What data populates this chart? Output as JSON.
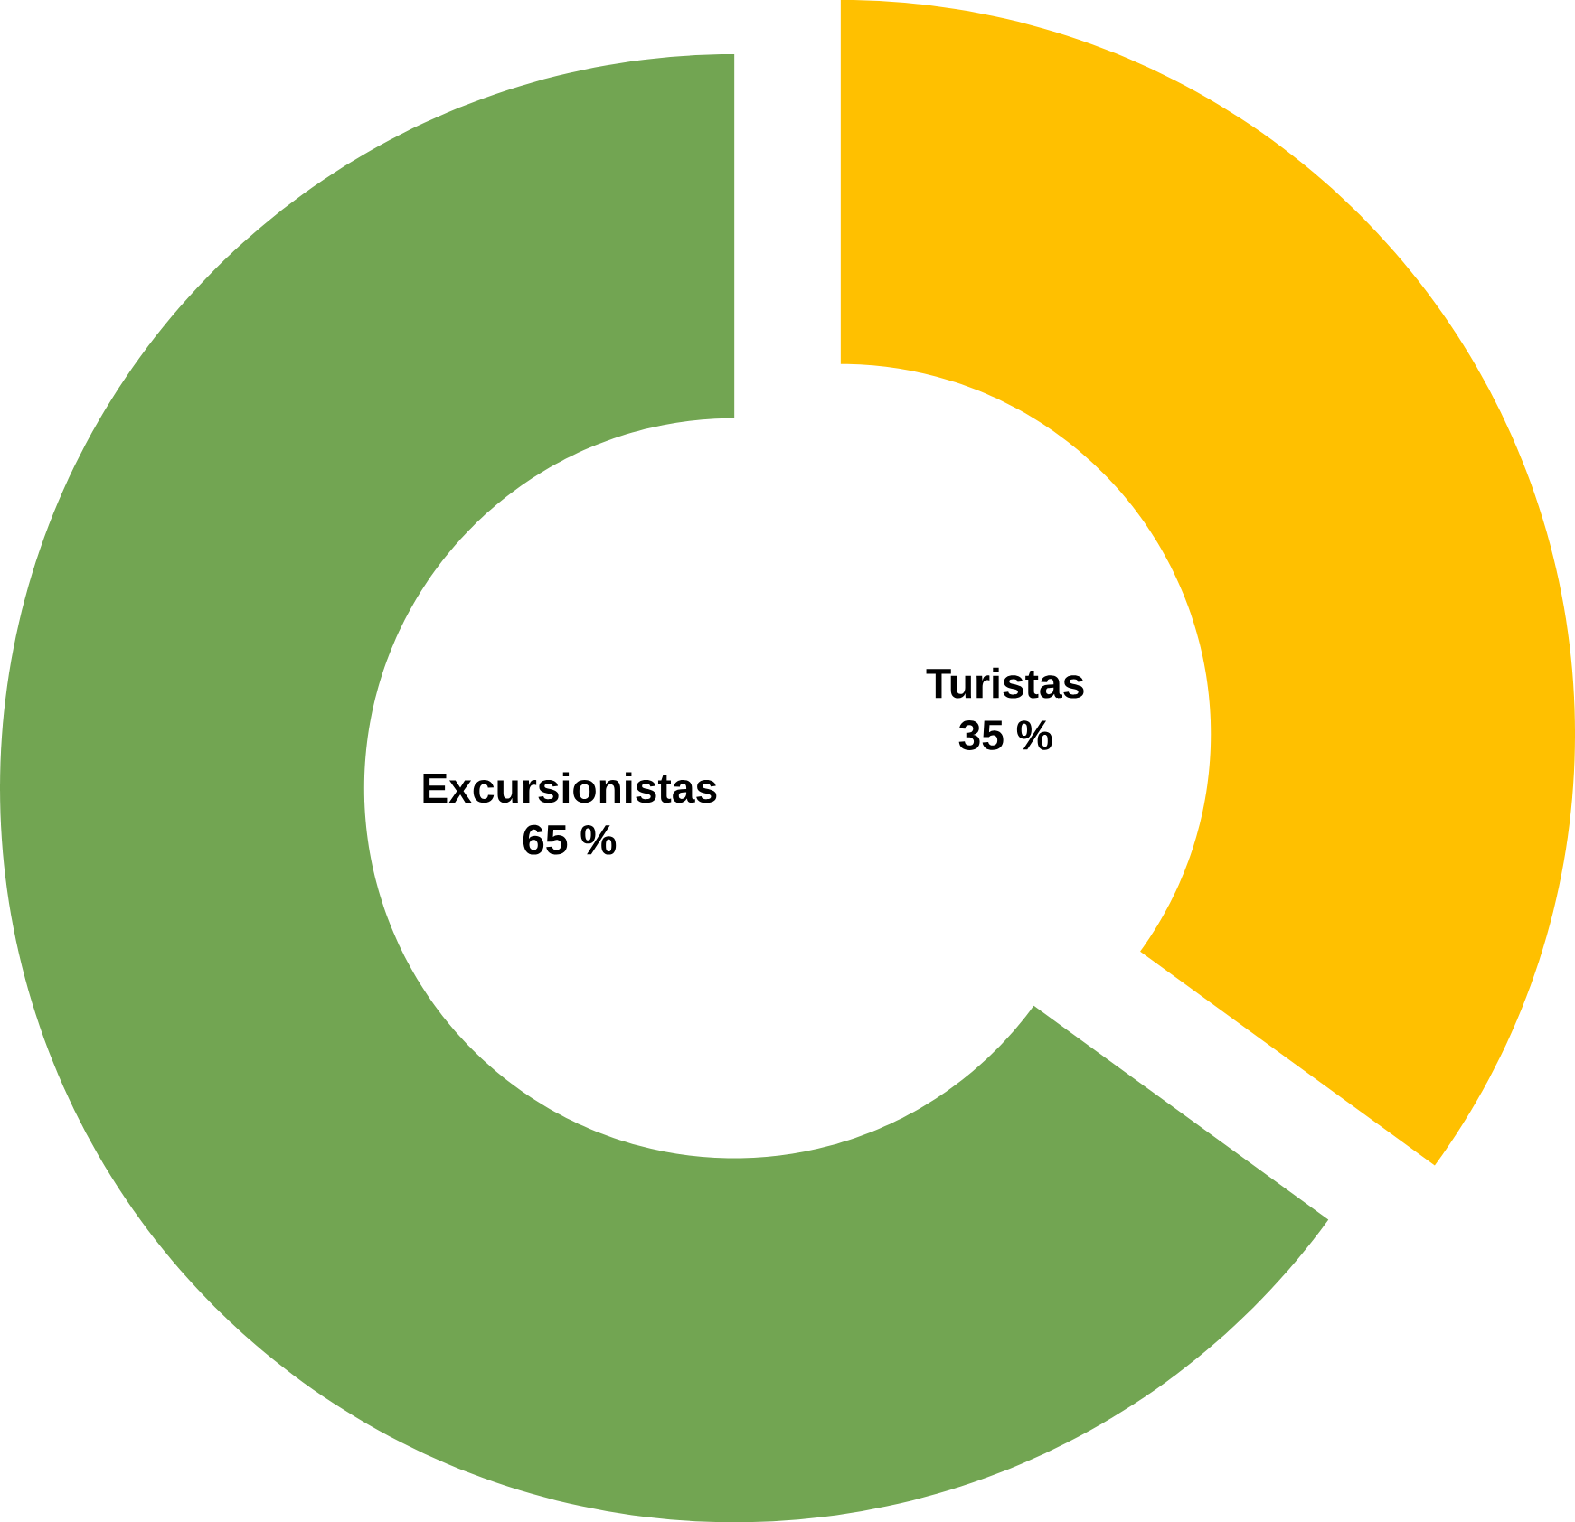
{
  "chart_data": {
    "type": "donut",
    "categories": [
      "Turistas",
      "Excursionistas"
    ],
    "values": [
      35,
      65
    ],
    "colors": [
      "#ffc000",
      "#72a552"
    ],
    "value_labels": [
      "35 %",
      "65 %"
    ]
  }
}
